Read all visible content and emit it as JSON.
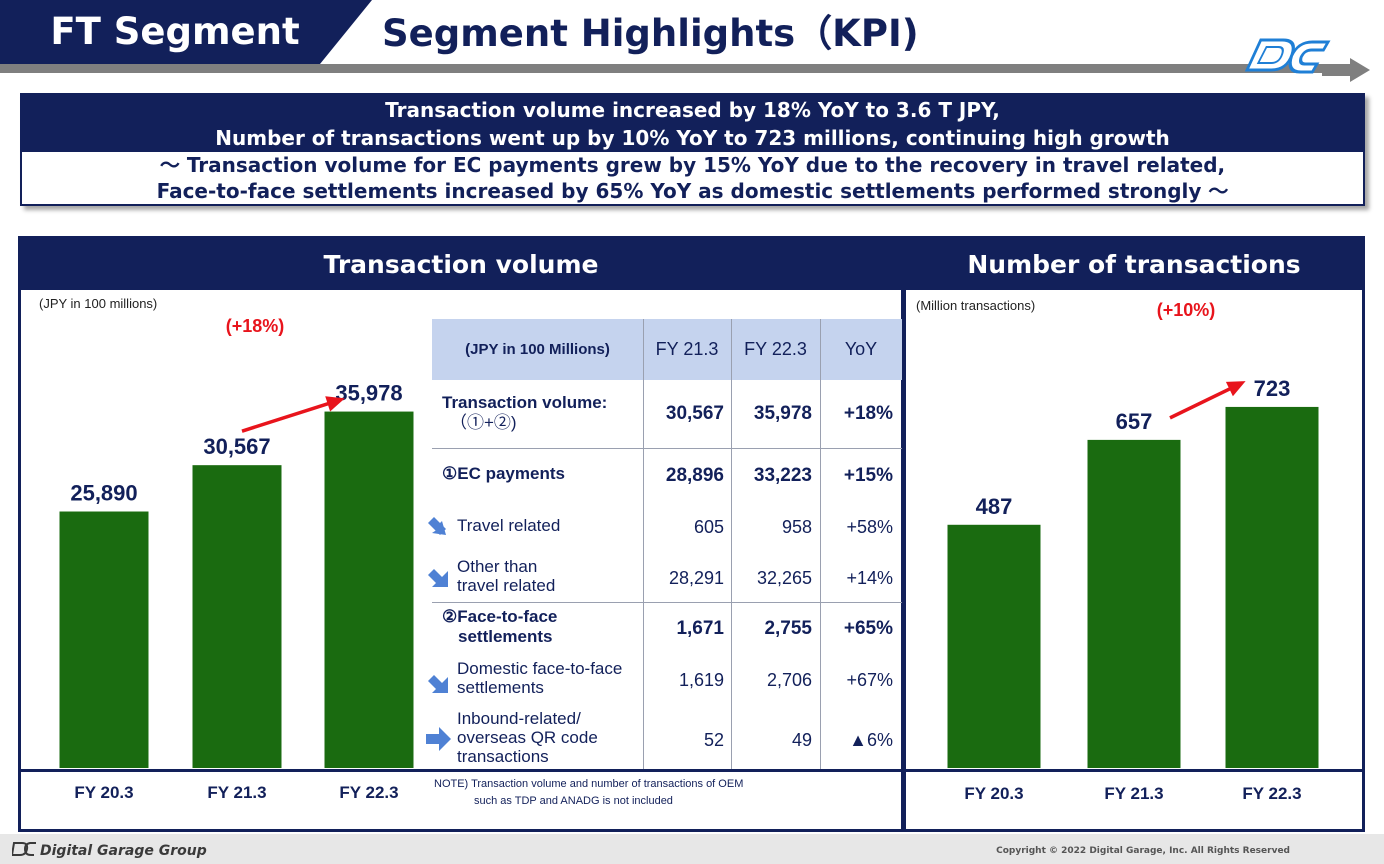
{
  "header": {
    "segment_label": "FT Segment",
    "title": "Segment Highlights（KPI)"
  },
  "summary": {
    "line1": "Transaction volume increased by 18% YoY to 3.6 T JPY,",
    "line2": "Number of transactions went up by 10% YoY to 723 millions, continuing high growth",
    "line3": "～ Transaction volume for EC payments grew by 15% YoY due to the recovery in travel related,",
    "line4": "Face-to-face settlements increased by 65% YoY as domestic settlements performed strongly ～"
  },
  "chart_data": [
    {
      "type": "bar",
      "title": "Transaction volume",
      "unit_note": "(JPY in 100 millions)",
      "categories": [
        "FY 20.3",
        "FY 21.3",
        "FY 22.3"
      ],
      "values": [
        25890,
        30567,
        35978
      ],
      "value_labels": [
        "25,890",
        "30,567",
        "35,978"
      ],
      "growth_annotation": "(+18%)",
      "bar_color": "#1a6b10",
      "ylim": [
        0,
        43000
      ]
    },
    {
      "type": "bar",
      "title": "Number of transactions",
      "unit_note": "(Million transactions)",
      "categories": [
        "FY 20.3",
        "FY 21.3",
        "FY 22.3"
      ],
      "values": [
        487,
        657,
        723
      ],
      "value_labels": [
        "487",
        "657",
        "723"
      ],
      "growth_annotation": "(+10%)",
      "bar_color": "#1a6b10",
      "ylim": [
        0,
        853
      ]
    }
  ],
  "table": {
    "header": {
      "unit": "(JPY in 100 Millions)",
      "col1": "FY 21.3",
      "col2": "FY 22.3",
      "col3": "YoY"
    },
    "rows": [
      {
        "label1": "Transaction volume:",
        "label2": "（①+②)",
        "v1": "30,567",
        "v2": "35,978",
        "yoy": "+18%"
      },
      {
        "label1": "①EC payments",
        "v1": "28,896",
        "v2": "33,223",
        "yoy": "+15%"
      },
      {
        "label1": "Travel related",
        "v1": "605",
        "v2": "958",
        "yoy": "+58%"
      },
      {
        "label1": "Other than",
        "label2": "travel related",
        "v1": "28,291",
        "v2": "32,265",
        "yoy": "+14%"
      },
      {
        "label1": "②Face-to-face",
        "label2": "settlements",
        "v1": "1,671",
        "v2": "2,755",
        "yoy": "+65%"
      },
      {
        "label1": "Domestic face-to-face",
        "label2": "settlements",
        "v1": "1,619",
        "v2": "2,706",
        "yoy": "+67%"
      },
      {
        "label1": "Inbound-related/",
        "label2": "overseas QR code",
        "label3": "transactions",
        "v1": "52",
        "v2": "49",
        "yoy": "▲6%"
      }
    ]
  },
  "note": {
    "line1": "NOTE)  Transaction volume and number of transactions of OEM",
    "line2": "such as TDP and ANADG is not included"
  },
  "footer": {
    "brand": "Digital Garage Group",
    "copyright": "Copyright © 2022 Digital Garage, Inc. All Rights Reserved"
  },
  "colors": {
    "navy": "#12205a",
    "bar_green": "#1a6b10",
    "growth_red": "#e8141c",
    "table_head": "#c5d3ee",
    "arrow_blue": "#4f81d4"
  }
}
